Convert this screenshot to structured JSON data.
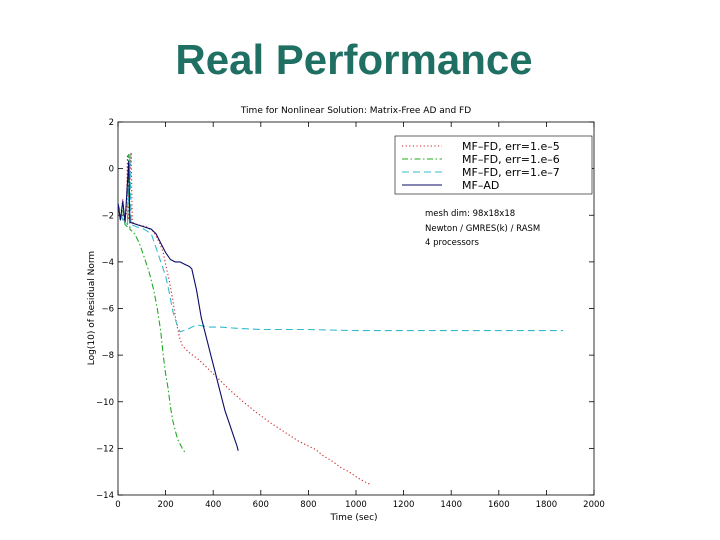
{
  "slide": {
    "title": "Real Performance"
  },
  "chart_data": {
    "type": "line",
    "title": "Time for Nonlinear Solution: Matrix-Free AD and FD",
    "xlabel": "Time (sec)",
    "ylabel": "Log(10) of Residual Norm",
    "xlim": [
      0,
      2000
    ],
    "ylim": [
      -14,
      2
    ],
    "xticks": [
      "0",
      "200",
      "400",
      "600",
      "800",
      "1000",
      "1200",
      "1400",
      "1600",
      "1800",
      "2000"
    ],
    "yticks": [
      "2",
      "0",
      "−2",
      "−4",
      "−6",
      "−8",
      "−10",
      "−12",
      "−14"
    ],
    "legend_position": "top-right",
    "grid": false,
    "annotations": [
      "mesh dim: 98x18x18",
      "Newton / GMRES(k) / RASM",
      "4 processors"
    ],
    "series": [
      {
        "name": "MF–FD, err=1.e–5",
        "color": "#cc2222",
        "dash": "dotted",
        "points": [
          [
            0,
            -1.5
          ],
          [
            10,
            -2.2
          ],
          [
            20,
            -1.3
          ],
          [
            25,
            -2.2
          ],
          [
            35,
            -2.0
          ],
          [
            40,
            0.6
          ],
          [
            45,
            -2.2
          ],
          [
            55,
            0.7
          ],
          [
            60,
            -2.3
          ],
          [
            80,
            -2.4
          ],
          [
            120,
            -2.5
          ],
          [
            150,
            -2.7
          ],
          [
            175,
            -3.2
          ],
          [
            190,
            -3.6
          ],
          [
            200,
            -4.1
          ],
          [
            215,
            -4.8
          ],
          [
            230,
            -5.6
          ],
          [
            245,
            -6.6
          ],
          [
            260,
            -7.3
          ],
          [
            270,
            -7.6
          ],
          [
            300,
            -7.9
          ],
          [
            340,
            -8.2
          ],
          [
            380,
            -8.6
          ],
          [
            420,
            -9.0
          ],
          [
            470,
            -9.5
          ],
          [
            520,
            -9.95
          ],
          [
            580,
            -10.45
          ],
          [
            640,
            -10.9
          ],
          [
            700,
            -11.3
          ],
          [
            760,
            -11.7
          ],
          [
            800,
            -11.9
          ],
          [
            830,
            -12.05
          ],
          [
            860,
            -12.3
          ],
          [
            900,
            -12.55
          ],
          [
            940,
            -12.85
          ],
          [
            970,
            -13.0
          ],
          [
            1005,
            -13.25
          ],
          [
            1040,
            -13.45
          ],
          [
            1060,
            -13.55
          ]
        ]
      },
      {
        "name": "MF–FD, err=1.e–6",
        "color": "#22aa22",
        "dash": "dashdot",
        "points": [
          [
            0,
            -1.5
          ],
          [
            10,
            -2.2
          ],
          [
            20,
            -1.8
          ],
          [
            30,
            -2.4
          ],
          [
            40,
            -2.5
          ],
          [
            45,
            0.6
          ],
          [
            50,
            -2.6
          ],
          [
            70,
            -2.8
          ],
          [
            90,
            -3.2
          ],
          [
            110,
            -3.8
          ],
          [
            130,
            -4.4
          ],
          [
            150,
            -5.2
          ],
          [
            165,
            -6.0
          ],
          [
            180,
            -7.0
          ],
          [
            190,
            -8.0
          ],
          [
            200,
            -8.8
          ],
          [
            210,
            -9.4
          ],
          [
            220,
            -10.2
          ],
          [
            230,
            -10.8
          ],
          [
            240,
            -11.2
          ],
          [
            250,
            -11.6
          ],
          [
            260,
            -11.8
          ],
          [
            270,
            -12.0
          ],
          [
            280,
            -12.15
          ]
        ]
      },
      {
        "name": "MF–FD, err=1.e–7",
        "color": "#33bbcc",
        "dash": "dashed",
        "points": [
          [
            0,
            -1.5
          ],
          [
            20,
            -2.2
          ],
          [
            40,
            -2.4
          ],
          [
            50,
            0.6
          ],
          [
            55,
            -2.4
          ],
          [
            80,
            -2.5
          ],
          [
            110,
            -2.6
          ],
          [
            140,
            -2.8
          ],
          [
            160,
            -3.4
          ],
          [
            180,
            -4.0
          ],
          [
            200,
            -4.6
          ],
          [
            215,
            -5.3
          ],
          [
            230,
            -6.1
          ],
          [
            245,
            -6.6
          ],
          [
            260,
            -7.0
          ],
          [
            290,
            -6.9
          ],
          [
            330,
            -6.7
          ],
          [
            380,
            -6.8
          ],
          [
            430,
            -6.8
          ],
          [
            500,
            -6.85
          ],
          [
            600,
            -6.9
          ],
          [
            800,
            -6.9
          ],
          [
            1000,
            -6.95
          ],
          [
            1200,
            -6.95
          ],
          [
            1400,
            -6.95
          ],
          [
            1600,
            -6.95
          ],
          [
            1800,
            -6.95
          ],
          [
            1870,
            -6.95
          ]
        ]
      },
      {
        "name": "MF–AD",
        "color": "#0a0a66",
        "dash": "solid",
        "points": [
          [
            0,
            -1.5
          ],
          [
            10,
            -2.2
          ],
          [
            20,
            -1.4
          ],
          [
            30,
            -2.3
          ],
          [
            45,
            0.3
          ],
          [
            50,
            -2.3
          ],
          [
            80,
            -2.4
          ],
          [
            110,
            -2.5
          ],
          [
            140,
            -2.6
          ],
          [
            160,
            -2.8
          ],
          [
            180,
            -3.2
          ],
          [
            200,
            -3.6
          ],
          [
            220,
            -3.9
          ],
          [
            240,
            -4.0
          ],
          [
            260,
            -4.0
          ],
          [
            280,
            -4.1
          ],
          [
            300,
            -4.2
          ],
          [
            310,
            -4.3
          ],
          [
            330,
            -5.2
          ],
          [
            350,
            -6.4
          ],
          [
            370,
            -7.2
          ],
          [
            390,
            -8.0
          ],
          [
            410,
            -8.8
          ],
          [
            430,
            -9.6
          ],
          [
            450,
            -10.4
          ],
          [
            470,
            -11.0
          ],
          [
            490,
            -11.6
          ],
          [
            500,
            -11.9
          ],
          [
            505,
            -12.1
          ]
        ]
      }
    ]
  }
}
